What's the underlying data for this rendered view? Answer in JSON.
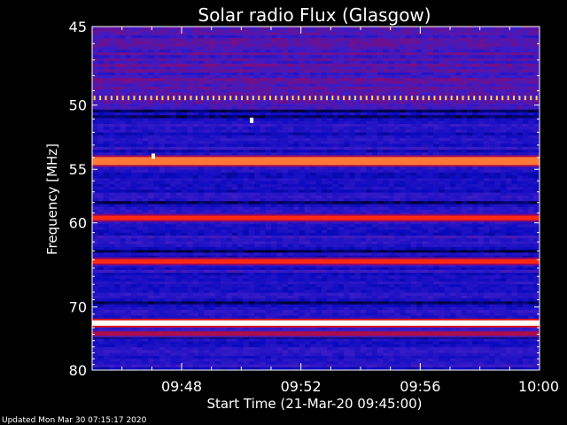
{
  "chart_data": {
    "type": "heatmap",
    "title": "Solar radio Flux (Glasgow)",
    "xlabel": "Start Time (21-Mar-20 09:45:00)",
    "ylabel": "Frequency [MHz]",
    "x_tick_labels": [
      "09:48",
      "09:52",
      "09:56",
      "10:00"
    ],
    "x_ticks_minutes": [
      3,
      7,
      11,
      15
    ],
    "x_range_minutes": [
      0,
      15
    ],
    "y_ticks": [
      45,
      50,
      55,
      60,
      70,
      80
    ],
    "y_range": [
      45,
      80
    ],
    "y_scale": "reciprocal",
    "colormap": [
      "#000030",
      "#0a0ac0",
      "#3a1cc8",
      "#8a0a70",
      "#d01020",
      "#ff2010",
      "#ffe060",
      "#ffffff"
    ],
    "emission_bands": [
      {
        "freq": 49.5,
        "intensity": 0.85,
        "style": "dotted"
      },
      {
        "freq": 54.3,
        "intensity": 0.78,
        "style": "solid"
      },
      {
        "freq": 59.5,
        "intensity": 0.72,
        "style": "solid"
      },
      {
        "freq": 64.2,
        "intensity": 0.72,
        "style": "solid"
      },
      {
        "freq": 72.3,
        "intensity": 1.0,
        "style": "solid"
      },
      {
        "freq": 73.9,
        "intensity": 0.5,
        "style": "solid"
      }
    ],
    "hot_spots": [
      {
        "time_min": 2.05,
        "freq": 53.9,
        "intensity": 0.95
      },
      {
        "time_min": 5.35,
        "freq": 51.1,
        "intensity": 1.0
      }
    ]
  },
  "footer": {
    "updated": "Updated Mon Mar 30 07:15:17 2020"
  }
}
